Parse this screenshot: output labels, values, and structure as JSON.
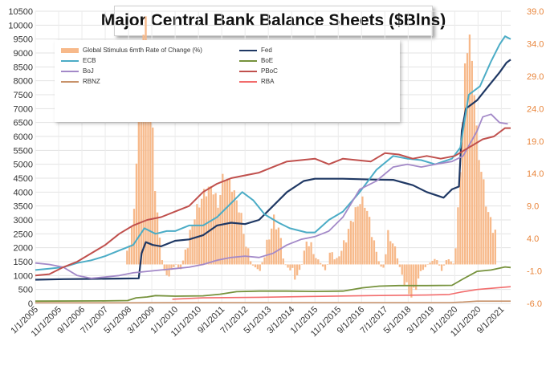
{
  "title": "Major Central Bank Balance Sheets ($Blns)",
  "chart_data": {
    "type": "line",
    "title": "Major Central Bank Balance Sheets ($Blns)",
    "x_ticks": [
      "1/1/2005",
      "11/1/2005",
      "9/1/2006",
      "7/1/2007",
      "5/1/2008",
      "3/1/2009",
      "1/1/2010",
      "11/1/2010",
      "9/1/2011",
      "7/1/2012",
      "5/1/2013",
      "3/1/2014",
      "1/1/2015",
      "11/1/2015",
      "9/1/2016",
      "7/1/2017",
      "5/1/2018",
      "3/1/2019",
      "1/1/2020",
      "11/1/2020",
      "9/1/2021"
    ],
    "x_range": [
      "2005-01",
      "2021-12"
    ],
    "y_left": {
      "range": [
        0,
        10500
      ],
      "ticks": [
        0,
        500,
        1000,
        1500,
        2000,
        2500,
        3000,
        3500,
        4000,
        4500,
        5000,
        5500,
        6000,
        6500,
        7000,
        7500,
        8000,
        8500,
        9000,
        9500,
        10000,
        10500
      ]
    },
    "y_right": {
      "range": [
        -6.0,
        39.0
      ],
      "ticks": [
        "-6.0",
        "-1.0",
        "4.0",
        "9.0",
        "14.0",
        "19.0",
        "24.0",
        "29.0",
        "34.0",
        "39.0"
      ],
      "color": "#e8843a"
    },
    "grid": true,
    "legend_position": "top-left",
    "stimulus": {
      "name": "Global Stimulus 6mth Rate of Change (%)",
      "color": "#f7b98a",
      "axis": "right",
      "points": [
        [
          2008.2,
          0
        ],
        [
          2008.5,
          8
        ],
        [
          2008.7,
          28
        ],
        [
          2008.83,
          36
        ],
        [
          2008.95,
          38
        ],
        [
          2009.1,
          27
        ],
        [
          2009.25,
          12
        ],
        [
          2009.45,
          2
        ],
        [
          2009.6,
          -2
        ],
        [
          2009.8,
          -1
        ],
        [
          2010.0,
          0
        ],
        [
          2010.15,
          -1
        ],
        [
          2010.4,
          3
        ],
        [
          2010.7,
          8
        ],
        [
          2011.0,
          11
        ],
        [
          2011.3,
          12
        ],
        [
          2011.5,
          9
        ],
        [
          2011.7,
          14
        ],
        [
          2012.0,
          12
        ],
        [
          2012.3,
          8
        ],
        [
          2012.5,
          3
        ],
        [
          2012.7,
          0
        ],
        [
          2013.0,
          -1
        ],
        [
          2013.25,
          3
        ],
        [
          2013.5,
          7
        ],
        [
          2013.7,
          5
        ],
        [
          2013.9,
          0
        ],
        [
          2014.1,
          -1
        ],
        [
          2014.3,
          -2
        ],
        [
          2014.5,
          0
        ],
        [
          2014.7,
          4
        ],
        [
          2014.9,
          2
        ],
        [
          2015.2,
          0
        ],
        [
          2015.35,
          -1
        ],
        [
          2015.55,
          2
        ],
        [
          2015.75,
          1
        ],
        [
          2016.0,
          3
        ],
        [
          2016.3,
          7
        ],
        [
          2016.6,
          10
        ],
        [
          2016.8,
          9
        ],
        [
          2017.0,
          5
        ],
        [
          2017.2,
          1
        ],
        [
          2017.4,
          -1
        ],
        [
          2017.6,
          5
        ],
        [
          2017.85,
          2
        ],
        [
          2018.1,
          -2
        ],
        [
          2018.3,
          -4
        ],
        [
          2018.45,
          -5
        ],
        [
          2018.6,
          -3
        ],
        [
          2018.8,
          -1
        ],
        [
          2019.0,
          0
        ],
        [
          2019.3,
          1
        ],
        [
          2019.5,
          -1
        ],
        [
          2019.7,
          1
        ],
        [
          2019.95,
          0
        ],
        [
          2020.1,
          9
        ],
        [
          2020.25,
          22
        ],
        [
          2020.35,
          32
        ],
        [
          2020.5,
          35
        ],
        [
          2020.65,
          28
        ],
        [
          2020.8,
          17
        ],
        [
          2020.95,
          14
        ],
        [
          2021.1,
          9
        ],
        [
          2021.3,
          6
        ],
        [
          2021.5,
          4
        ]
      ]
    },
    "series": [
      {
        "name": "Fed",
        "color": "#1f3864",
        "width": 2.2,
        "points": [
          [
            2005.0,
            850
          ],
          [
            2006.0,
            870
          ],
          [
            2007.0,
            880
          ],
          [
            2008.0,
            890
          ],
          [
            2008.7,
            900
          ],
          [
            2008.8,
            1800
          ],
          [
            2008.95,
            2200
          ],
          [
            2009.2,
            2100
          ],
          [
            2009.5,
            2050
          ],
          [
            2010.0,
            2250
          ],
          [
            2010.5,
            2300
          ],
          [
            2011.0,
            2450
          ],
          [
            2011.5,
            2800
          ],
          [
            2012.0,
            2900
          ],
          [
            2012.5,
            2850
          ],
          [
            2013.0,
            3000
          ],
          [
            2013.5,
            3500
          ],
          [
            2014.0,
            4000
          ],
          [
            2014.6,
            4400
          ],
          [
            2015.0,
            4480
          ],
          [
            2016.0,
            4480
          ],
          [
            2017.0,
            4450
          ],
          [
            2017.8,
            4440
          ],
          [
            2018.5,
            4250
          ],
          [
            2019.0,
            4000
          ],
          [
            2019.6,
            3800
          ],
          [
            2019.9,
            4100
          ],
          [
            2020.15,
            4200
          ],
          [
            2020.25,
            6200
          ],
          [
            2020.4,
            7000
          ],
          [
            2020.8,
            7300
          ],
          [
            2021.2,
            7800
          ],
          [
            2021.6,
            8300
          ],
          [
            2021.85,
            8650
          ],
          [
            2022.0,
            8760
          ]
        ]
      },
      {
        "name": "ECB",
        "color": "#4bacc6",
        "width": 2.0,
        "points": [
          [
            2005.0,
            1200
          ],
          [
            2005.5,
            1250
          ],
          [
            2006.0,
            1300
          ],
          [
            2006.5,
            1450
          ],
          [
            2007.0,
            1550
          ],
          [
            2007.5,
            1700
          ],
          [
            2008.0,
            1900
          ],
          [
            2008.5,
            2100
          ],
          [
            2008.9,
            2700
          ],
          [
            2009.3,
            2500
          ],
          [
            2009.7,
            2600
          ],
          [
            2010.0,
            2600
          ],
          [
            2010.5,
            2800
          ],
          [
            2011.0,
            2800
          ],
          [
            2011.5,
            3100
          ],
          [
            2012.0,
            3600
          ],
          [
            2012.4,
            4000
          ],
          [
            2012.8,
            3700
          ],
          [
            2013.2,
            3200
          ],
          [
            2013.7,
            2900
          ],
          [
            2014.1,
            2700
          ],
          [
            2014.7,
            2550
          ],
          [
            2015.0,
            2550
          ],
          [
            2015.5,
            3000
          ],
          [
            2016.0,
            3300
          ],
          [
            2016.6,
            4000
          ],
          [
            2017.2,
            4800
          ],
          [
            2017.8,
            5300
          ],
          [
            2018.3,
            5200
          ],
          [
            2018.8,
            5150
          ],
          [
            2019.3,
            5000
          ],
          [
            2019.9,
            5200
          ],
          [
            2020.2,
            5600
          ],
          [
            2020.5,
            7500
          ],
          [
            2020.9,
            7800
          ],
          [
            2021.3,
            8700
          ],
          [
            2021.6,
            9300
          ],
          [
            2021.8,
            9600
          ],
          [
            2022.0,
            9500
          ]
        ]
      },
      {
        "name": "BoJ",
        "color": "#a389c8",
        "width": 1.8,
        "points": [
          [
            2005.0,
            1450
          ],
          [
            2005.5,
            1400
          ],
          [
            2006.0,
            1300
          ],
          [
            2006.5,
            1000
          ],
          [
            2007.0,
            900
          ],
          [
            2007.5,
            950
          ],
          [
            2008.0,
            1000
          ],
          [
            2008.5,
            1100
          ],
          [
            2009.0,
            1150
          ],
          [
            2009.5,
            1200
          ],
          [
            2010.0,
            1250
          ],
          [
            2010.5,
            1300
          ],
          [
            2011.0,
            1400
          ],
          [
            2011.5,
            1550
          ],
          [
            2012.0,
            1650
          ],
          [
            2012.5,
            1700
          ],
          [
            2013.0,
            1650
          ],
          [
            2013.5,
            1800
          ],
          [
            2014.0,
            2100
          ],
          [
            2014.5,
            2300
          ],
          [
            2015.0,
            2400
          ],
          [
            2015.5,
            2600
          ],
          [
            2016.0,
            3100
          ],
          [
            2016.6,
            4100
          ],
          [
            2017.2,
            4400
          ],
          [
            2017.8,
            4900
          ],
          [
            2018.3,
            5000
          ],
          [
            2018.8,
            4900
          ],
          [
            2019.3,
            5000
          ],
          [
            2019.9,
            5100
          ],
          [
            2020.3,
            5300
          ],
          [
            2020.8,
            6200
          ],
          [
            2021.0,
            6700
          ],
          [
            2021.3,
            6800
          ],
          [
            2021.6,
            6500
          ],
          [
            2021.9,
            6450
          ]
        ]
      },
      {
        "name": "RBNZ",
        "color": "#c8926a",
        "width": 1.6,
        "points": [
          [
            2005.0,
            20
          ],
          [
            2008.0,
            20
          ],
          [
            2010.0,
            25
          ],
          [
            2012.0,
            30
          ],
          [
            2014.0,
            30
          ],
          [
            2016.0,
            30
          ],
          [
            2018.0,
            30
          ],
          [
            2019.8,
            30
          ],
          [
            2020.3,
            50
          ],
          [
            2020.8,
            80
          ],
          [
            2021.3,
            80
          ],
          [
            2022.0,
            80
          ]
        ]
      },
      {
        "name": "BoE",
        "color": "#76923c",
        "width": 1.8,
        "points": [
          [
            2005.0,
            80
          ],
          [
            2007.5,
            90
          ],
          [
            2008.3,
            100
          ],
          [
            2008.6,
            200
          ],
          [
            2009.0,
            230
          ],
          [
            2009.3,
            280
          ],
          [
            2010.0,
            260
          ],
          [
            2011.0,
            270
          ],
          [
            2011.6,
            330
          ],
          [
            2012.2,
            420
          ],
          [
            2013.0,
            440
          ],
          [
            2014.0,
            440
          ],
          [
            2015.0,
            430
          ],
          [
            2016.0,
            440
          ],
          [
            2016.7,
            560
          ],
          [
            2017.3,
            620
          ],
          [
            2018.0,
            640
          ],
          [
            2019.0,
            640
          ],
          [
            2019.9,
            650
          ],
          [
            2020.3,
            880
          ],
          [
            2020.8,
            1150
          ],
          [
            2021.3,
            1200
          ],
          [
            2021.8,
            1310
          ],
          [
            2022.0,
            1290
          ]
        ]
      },
      {
        "name": "PBoC",
        "color": "#c0504d",
        "width": 2.0,
        "points": [
          [
            2005.0,
            1000
          ],
          [
            2005.5,
            1050
          ],
          [
            2006.0,
            1300
          ],
          [
            2006.5,
            1500
          ],
          [
            2007.0,
            1800
          ],
          [
            2007.5,
            2100
          ],
          [
            2008.0,
            2500
          ],
          [
            2008.5,
            2800
          ],
          [
            2009.0,
            3000
          ],
          [
            2009.5,
            3100
          ],
          [
            2010.0,
            3300
          ],
          [
            2010.5,
            3500
          ],
          [
            2011.0,
            4000
          ],
          [
            2011.5,
            4300
          ],
          [
            2012.0,
            4500
          ],
          [
            2012.5,
            4600
          ],
          [
            2013.0,
            4700
          ],
          [
            2013.5,
            4900
          ],
          [
            2014.0,
            5100
          ],
          [
            2014.5,
            5150
          ],
          [
            2015.0,
            5200
          ],
          [
            2015.5,
            5000
          ],
          [
            2016.0,
            5200
          ],
          [
            2016.5,
            5150
          ],
          [
            2017.0,
            5100
          ],
          [
            2017.5,
            5400
          ],
          [
            2018.0,
            5350
          ],
          [
            2018.5,
            5200
          ],
          [
            2019.0,
            5300
          ],
          [
            2019.5,
            5200
          ],
          [
            2020.0,
            5300
          ],
          [
            2020.5,
            5600
          ],
          [
            2021.0,
            5900
          ],
          [
            2021.4,
            6000
          ],
          [
            2021.8,
            6300
          ],
          [
            2022.0,
            6300
          ]
        ]
      },
      {
        "name": "RBA",
        "color": "#f26c6c",
        "width": 1.6,
        "points": [
          [
            2009.9,
            150
          ],
          [
            2011.0,
            200
          ],
          [
            2013.0,
            220
          ],
          [
            2015.0,
            250
          ],
          [
            2017.0,
            280
          ],
          [
            2019.0,
            300
          ],
          [
            2019.8,
            320
          ],
          [
            2020.2,
            400
          ],
          [
            2020.8,
            500
          ],
          [
            2021.4,
            550
          ],
          [
            2022.0,
            600
          ]
        ]
      }
    ]
  }
}
